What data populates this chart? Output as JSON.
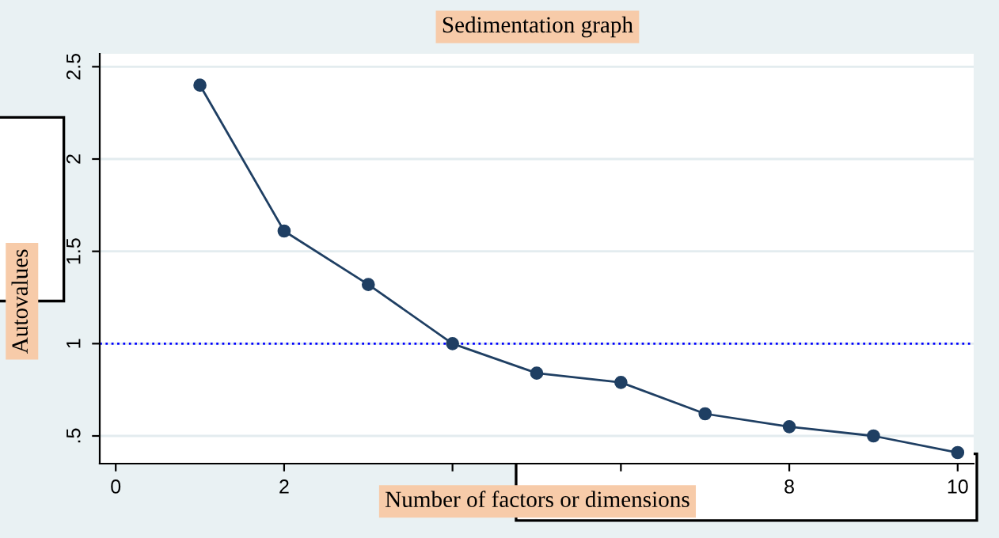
{
  "chart_data": {
    "type": "line",
    "title": "Sedimentation graph",
    "xlabel": "Number of factors or dimensions",
    "ylabel": "Autovalues",
    "x": [
      1,
      2,
      3,
      4,
      5,
      6,
      7,
      8,
      9,
      10
    ],
    "series": [
      {
        "color": "#1f3f63",
        "values": [
          2.4,
          1.61,
          1.32,
          1.0,
          0.84,
          0.79,
          0.62,
          0.55,
          0.5,
          0.41
        ]
      }
    ],
    "xlim": [
      -0.19,
      10.19
    ],
    "xticks": [
      0,
      2,
      {
        "value": 4,
        "label": null
      },
      {
        "value": 6,
        "label": null
      },
      8,
      10
    ],
    "ylim": [
      0.35,
      2.57
    ],
    "yticks": [
      {
        "value": 0.5,
        "label": ".5"
      },
      1,
      1.5,
      2,
      2.5
    ],
    "ref_lines": [
      {
        "axis": "y",
        "value": 1,
        "color": "#0000ff",
        "line_style": "dotted"
      }
    ],
    "grid": "y",
    "legend": false,
    "marker": "circle",
    "line_style": "solid"
  }
}
